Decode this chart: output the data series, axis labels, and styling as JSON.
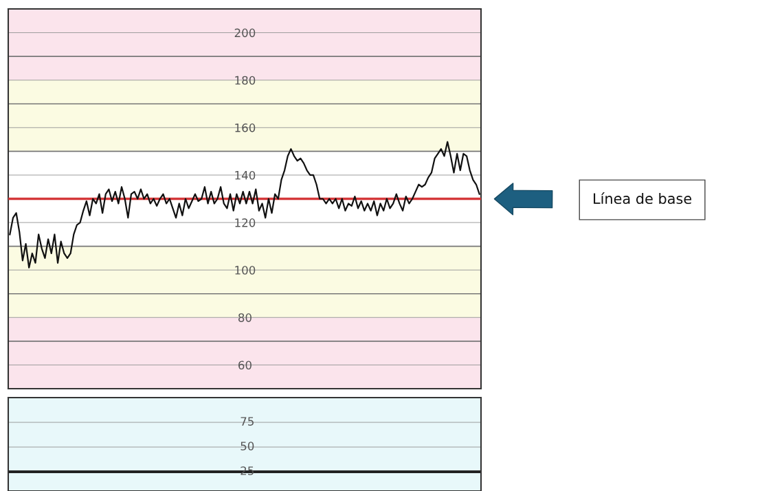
{
  "chart_data": [
    {
      "type": "line",
      "tick_labels": "y",
      "grid": "y",
      "marker": "none",
      "line_style": "solid",
      "categories": [
        null,
        null,
        null,
        null,
        null,
        null,
        null,
        null,
        null,
        null,
        null,
        null,
        null,
        null,
        null,
        null,
        null,
        null,
        null,
        null,
        null,
        null,
        null,
        null,
        null,
        null,
        null,
        null,
        null,
        null,
        null,
        null,
        null,
        null,
        null,
        null,
        null,
        null,
        null,
        null,
        null,
        null,
        null,
        null,
        null,
        null,
        null,
        null,
        null,
        null,
        null,
        null,
        null,
        null,
        null,
        null,
        null,
        null,
        null,
        null,
        null,
        null,
        null,
        null,
        null,
        null,
        null,
        null,
        null,
        null,
        null,
        null,
        null,
        null,
        null,
        null,
        null,
        null,
        null,
        null,
        null,
        null,
        null,
        null,
        null,
        null,
        null,
        null,
        null,
        null,
        null,
        null,
        null,
        null,
        null,
        null,
        null,
        null,
        null,
        null,
        null,
        null,
        null,
        null,
        null,
        null,
        null,
        null,
        null,
        null,
        null,
        null,
        null,
        null,
        null,
        null,
        null,
        null,
        null,
        null,
        null,
        null,
        null,
        null,
        null,
        null,
        null,
        null,
        null,
        null,
        null,
        null,
        null,
        null,
        null,
        null,
        null,
        null,
        null,
        null,
        null,
        null,
        null,
        null,
        null,
        null,
        null,
        null
      ],
      "ylim": [
        50,
        210
      ],
      "yticks": [
        60,
        {
          "value": 70,
          "label": null
        },
        80,
        {
          "value": 90,
          "label": null
        },
        100,
        {
          "value": 110,
          "label": null
        },
        120,
        {
          "value": 130,
          "label": null
        },
        140,
        {
          "value": 150,
          "label": null
        },
        160,
        {
          "value": 170,
          "label": null
        },
        180,
        {
          "value": 190,
          "label": null
        },
        200
      ],
      "bands": [
        {
          "axis": "y",
          "from": 180,
          "to": 210,
          "color": "#fbe4ec"
        },
        {
          "axis": "y",
          "from": 150,
          "to": 180,
          "color": "#fbfbe2"
        },
        {
          "axis": "y",
          "from": 80,
          "to": 110,
          "color": "#fbfbe2"
        },
        {
          "axis": "y",
          "from": 50,
          "to": 80,
          "color": "#fbe4ec"
        }
      ],
      "ref_lines": [
        {
          "axis": "y",
          "value": 130,
          "color": "#d4383a"
        }
      ],
      "annotations": [
        "Línea de base"
      ],
      "series": [
        {
          "color": "#111111",
          "values": [
            115,
            122,
            124,
            116,
            104,
            111,
            101,
            107,
            103,
            115,
            109,
            105,
            113,
            107,
            115,
            103,
            112,
            107,
            105,
            107,
            115,
            119,
            120,
            125,
            129,
            123,
            130,
            128,
            132,
            124,
            132,
            134,
            129,
            133,
            128,
            135,
            130,
            122,
            132,
            133,
            130,
            134,
            130,
            132,
            128,
            130,
            127,
            130,
            132,
            128,
            130,
            126,
            122,
            128,
            123,
            130,
            126,
            129,
            132,
            129,
            130,
            135,
            128,
            133,
            128,
            130,
            135,
            128,
            126,
            132,
            125,
            132,
            128,
            133,
            128,
            133,
            128,
            134,
            125,
            128,
            122,
            130,
            124,
            132,
            130,
            138,
            142,
            148,
            151,
            148,
            146,
            147,
            145,
            142,
            140,
            140,
            136,
            130,
            130,
            128,
            130,
            128,
            130,
            126,
            130,
            125,
            128,
            127,
            131,
            126,
            129,
            125,
            128,
            125,
            129,
            123,
            128,
            125,
            130,
            126,
            128,
            132,
            128,
            125,
            131,
            128,
            130,
            133,
            136,
            135,
            136,
            139,
            141,
            147,
            149,
            151,
            148,
            154,
            148,
            141,
            149,
            142,
            149,
            148,
            142,
            138,
            136,
            132
          ]
        }
      ]
    },
    {
      "type": "other",
      "annotations": [
        "75",
        "50",
        "25"
      ]
    }
  ]
}
